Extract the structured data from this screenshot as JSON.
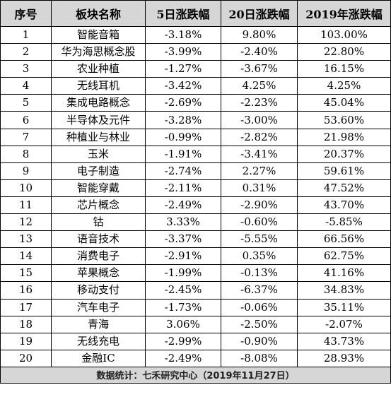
{
  "table": {
    "headers": [
      "序号",
      "板块名称",
      "5日涨跌幅",
      "20日涨跌幅",
      "2019年涨跌幅"
    ],
    "rows": [
      [
        "1",
        "智能音箱",
        "-3.18%",
        "9.80%",
        "103.00%"
      ],
      [
        "2",
        "华为海思概念股",
        "-3.99%",
        "-2.40%",
        "22.80%"
      ],
      [
        "3",
        "农业种植",
        "-1.27%",
        "-3.67%",
        "16.15%"
      ],
      [
        "4",
        "无线耳机",
        "-3.42%",
        "4.25%",
        "4.25%"
      ],
      [
        "5",
        "集成电路概念",
        "-2.69%",
        "-2.23%",
        "45.04%"
      ],
      [
        "6",
        "半导体及元件",
        "-3.28%",
        "-3.00%",
        "53.60%"
      ],
      [
        "7",
        "种植业与林业",
        "-0.99%",
        "-2.82%",
        "21.98%"
      ],
      [
        "8",
        "玉米",
        "-1.91%",
        "-3.41%",
        "20.37%"
      ],
      [
        "9",
        "电子制造",
        "-2.74%",
        "2.27%",
        "59.61%"
      ],
      [
        "10",
        "智能穿戴",
        "-2.11%",
        "0.31%",
        "47.52%"
      ],
      [
        "11",
        "芯片概念",
        "-2.49%",
        "-2.90%",
        "43.70%"
      ],
      [
        "12",
        "钴",
        "3.33%",
        "-0.60%",
        "-5.85%"
      ],
      [
        "13",
        "语音技术",
        "-3.37%",
        "-5.55%",
        "66.56%"
      ],
      [
        "14",
        "消费电子",
        "-2.91%",
        "0.35%",
        "62.75%"
      ],
      [
        "15",
        "苹果概念",
        "-1.99%",
        "-0.13%",
        "41.16%"
      ],
      [
        "16",
        "移动支付",
        "-2.45%",
        "-6.37%",
        "34.83%"
      ],
      [
        "17",
        "汽车电子",
        "-1.73%",
        "-0.06%",
        "35.11%"
      ],
      [
        "18",
        "青海",
        "3.06%",
        "-2.50%",
        "-2.07%"
      ],
      [
        "19",
        "无线充电",
        "-2.99%",
        "-0.90%",
        "43.73%"
      ],
      [
        "20",
        "金融IC",
        "-2.49%",
        "-8.08%",
        "28.93%"
      ]
    ],
    "footer": "数据统计：七禾研究中心（2019年11月27日）"
  }
}
